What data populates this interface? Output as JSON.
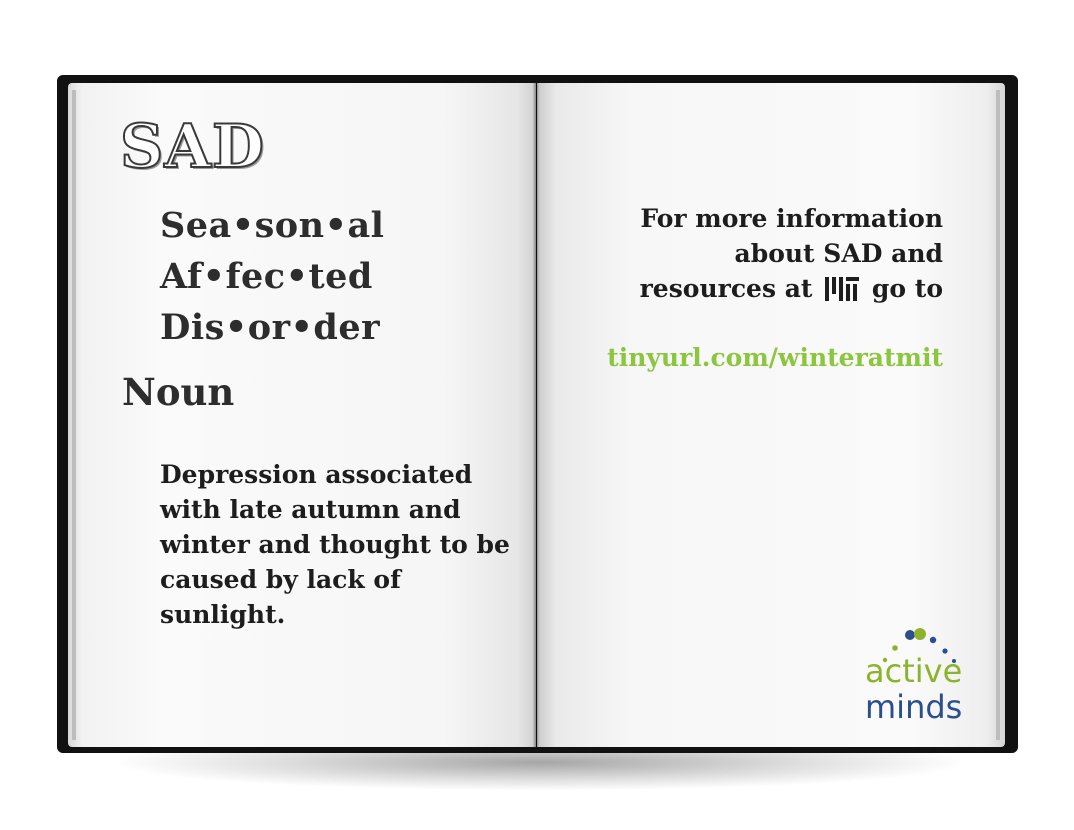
{
  "colors": {
    "text_dark": "#1d1d1d",
    "link_green": "#8cc63f",
    "brand_green": "#8cb22e",
    "brand_blue": "#2b4f8c",
    "cover": "#111111"
  },
  "left_page": {
    "title": "SAD",
    "syllables": [
      "Sea•son•al",
      "Af•fec•ted",
      "Dis•or•der"
    ],
    "part_of_speech": "Noun",
    "definition": "Depression associated with late autumn and winter and thought to be caused by lack of sunlight."
  },
  "right_page": {
    "info_line1": "For more information",
    "info_line2": "about SAD and",
    "info_line3_start": "resources at",
    "info_line3_end": "go to",
    "institution_logo": "mit-logo",
    "link": "tinyurl.com/winteratmit"
  },
  "brand": {
    "word1": "active",
    "word2": "minds",
    "icon": "dots-arc-logo"
  }
}
